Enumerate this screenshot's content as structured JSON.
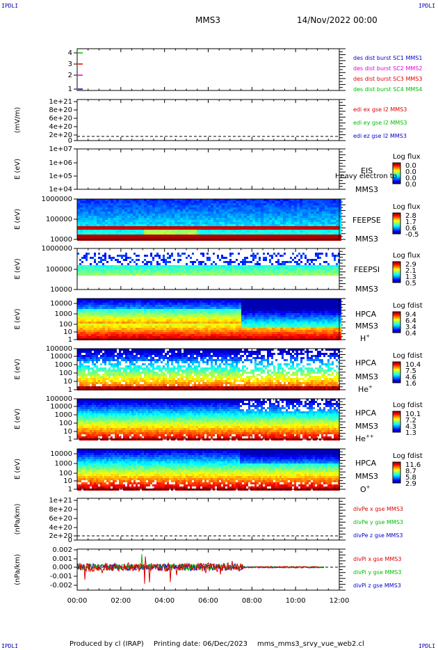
{
  "corners": {
    "tl": "IPDLI",
    "tr": "IPDLI",
    "bl": "IPDLI",
    "br": "IPDLI"
  },
  "header": {
    "spacecraft": "MMS3",
    "date": "14/Nov/2022 00:00"
  },
  "footer": {
    "producer": "Produced by cl (IRAP)",
    "printing": "Printing date: 06/Dec/2023",
    "file": "mms_mms3_srvy_vue_web2.cl"
  },
  "time_axis": {
    "start": "00:00",
    "end": "12:00",
    "ticks": [
      "00:00",
      "02:00",
      "04:00",
      "06:00",
      "08:00",
      "10:00",
      "12:00"
    ]
  },
  "colors": {
    "blue": "#0000cc",
    "magenta": "#e000e0",
    "red": "#dd0000",
    "green": "#00bb00"
  },
  "chart_data": [
    {
      "id": "p1",
      "type": "line",
      "ylabel": "",
      "yticks": [
        "1",
        "2",
        "3",
        "4"
      ],
      "ylim": [
        0.6,
        4.4
      ],
      "legend": [
        {
          "text": "des dist burst SC1 MMS1",
          "color": "#0000cc"
        },
        {
          "text": "des dist burst SC2 MMS2",
          "color": "#e000e0"
        },
        {
          "text": "des dist burst SC3 MMS3",
          "color": "#dd0000"
        },
        {
          "text": "des dist burst SC4 MMS4",
          "color": "#00bb00"
        }
      ],
      "series": [
        {
          "name": "des dist burst SC1 MMS1",
          "y": 1,
          "x": [
            "00:00",
            "00:15"
          ],
          "color": "#0000cc"
        },
        {
          "name": "des dist burst SC2 MMS2",
          "y": 2,
          "x": [
            "00:00",
            "00:15"
          ],
          "color": "#e000e0"
        },
        {
          "name": "des dist burst SC3 MMS3",
          "y": 3,
          "x": [
            "00:00",
            "00:15"
          ],
          "color": "#dd0000"
        },
        {
          "name": "des dist burst SC4 MMS4",
          "y": 4,
          "x": [
            "00:00",
            "00:15"
          ],
          "color": "#00bb00"
        }
      ]
    },
    {
      "id": "p2",
      "type": "line",
      "ylabel": "(mV/m)",
      "yticks": [
        "1e+21",
        "8e+20",
        "6e+20",
        "4e+20",
        "2e+20",
        "0"
      ],
      "legend": [
        {
          "text": "edi ex gse l2 MMS3",
          "color": "#dd0000"
        },
        {
          "text": "edi ey gse l2 MMS3",
          "color": "#00bb00"
        },
        {
          "text": "edi ez gse l2 MMS3",
          "color": "#0000cc"
        }
      ],
      "series": []
    },
    {
      "id": "p3",
      "type": "heatmap",
      "ylabel": "E (eV)",
      "yticks": [
        "1e+07",
        "1e+06",
        "1e+05",
        "1e+04"
      ],
      "label": [
        "EIS",
        "MMS3"
      ],
      "overlay": "Heavy electron to",
      "cbar_title": "Log flux",
      "cbar_ticks": [
        "0.0",
        "0.0",
        "0.0",
        "0.0"
      ],
      "values": []
    },
    {
      "id": "p4",
      "type": "heatmap",
      "ylabel": "E (eV)",
      "yticks": [
        "1000000",
        "100000",
        "10000"
      ],
      "label": [
        "FEEPSE",
        "MMS3"
      ],
      "cbar_title": "Log flux",
      "cbar_ticks": [
        "2.8",
        "1.7",
        "0.6",
        "-0.5"
      ],
      "summary": [
        {
          "energy_band": "high",
          "level": "low (blue)"
        },
        {
          "energy_band": "mid",
          "level": "cyan-green"
        },
        {
          "energy_band": "lowest",
          "level": "high (red)"
        }
      ]
    },
    {
      "id": "p5",
      "type": "heatmap",
      "ylabel": "E (eV)",
      "yticks": [
        "1000000",
        "100000",
        "10000"
      ],
      "label": [
        "FEEPSI",
        "MMS3"
      ],
      "cbar_title": "Log flux",
      "cbar_ticks": [
        "2.9",
        "2.1",
        "1.3",
        "0.5"
      ],
      "summary": [
        {
          "energy_band": "high",
          "level": "sparse blue"
        },
        {
          "energy_band": "mid",
          "level": "cyan-green"
        },
        {
          "energy_band": "lowest",
          "level": "high (red)"
        }
      ]
    },
    {
      "id": "p6",
      "type": "heatmap",
      "ylabel": "E (eV)",
      "yticks": [
        "10000",
        "1000",
        "100",
        "10",
        "1"
      ],
      "label": [
        "HPCA",
        "MMS3",
        "H+"
      ],
      "cbar_title": "Log fdist",
      "cbar_ticks": [
        "9.4",
        "6.4",
        "3.4",
        "0.4"
      ]
    },
    {
      "id": "p7",
      "type": "heatmap",
      "ylabel": "E (eV)",
      "yticks": [
        "100000",
        "10000",
        "1000",
        "100",
        "10",
        "1"
      ],
      "label": [
        "HPCA",
        "MMS3",
        "He+"
      ],
      "cbar_title": "Log fdist",
      "cbar_ticks": [
        "10.4",
        "7.5",
        "4.6",
        "1.6"
      ]
    },
    {
      "id": "p8",
      "type": "heatmap",
      "ylabel": "E (eV)",
      "yticks": [
        "100000",
        "10000",
        "1000",
        "100",
        "10",
        "1"
      ],
      "label": [
        "HPCA",
        "MMS3",
        "He++"
      ],
      "cbar_title": "Log fdist",
      "cbar_ticks": [
        "10.1",
        "7.2",
        "4.3",
        "1.3"
      ]
    },
    {
      "id": "p9",
      "type": "heatmap",
      "ylabel": "E (eV)",
      "yticks": [
        "10000",
        "1000",
        "100",
        "10",
        "1"
      ],
      "label": [
        "HPCA",
        "MMS3",
        "O+"
      ],
      "cbar_title": "Log fdist",
      "cbar_ticks": [
        "11.6",
        "8.7",
        "5.8",
        "2.9"
      ]
    },
    {
      "id": "p10",
      "type": "line",
      "ylabel": "(nPa/km)",
      "yticks": [
        "1e+21",
        "8e+20",
        "6e+20",
        "4e+20",
        "2e+20",
        "0"
      ],
      "legend": [
        {
          "text": "divPe x gse MMS3",
          "color": "#dd0000"
        },
        {
          "text": "divPe y gse MMS3",
          "color": "#00bb00"
        },
        {
          "text": "divPe z gse MMS3",
          "color": "#0000cc"
        }
      ],
      "series": []
    },
    {
      "id": "p11",
      "type": "line",
      "ylabel": "(nPa/km)",
      "yticks": [
        "0.002",
        "0.001",
        "0.000",
        "-0.001",
        "-0.002"
      ],
      "ylim": [
        -0.0025,
        0.0025
      ],
      "legend": [
        {
          "text": "divPi x gse MMS3",
          "color": "#dd0000"
        },
        {
          "text": "divPi y gse MMS3",
          "color": "#00bb00"
        },
        {
          "text": "divPi z gse MMS3",
          "color": "#0000cc"
        }
      ],
      "series": [
        {
          "name": "divPi x gse MMS3",
          "x_range": [
            "00:00",
            "11:20"
          ],
          "color": "#dd0000"
        },
        {
          "name": "divPi y gse MMS3",
          "x_range": [
            "00:00",
            "11:20"
          ],
          "color": "#00bb00"
        },
        {
          "name": "divPi z gse MMS3",
          "x_range": [
            "00:00",
            "11:20"
          ],
          "color": "#0000cc"
        }
      ]
    }
  ]
}
